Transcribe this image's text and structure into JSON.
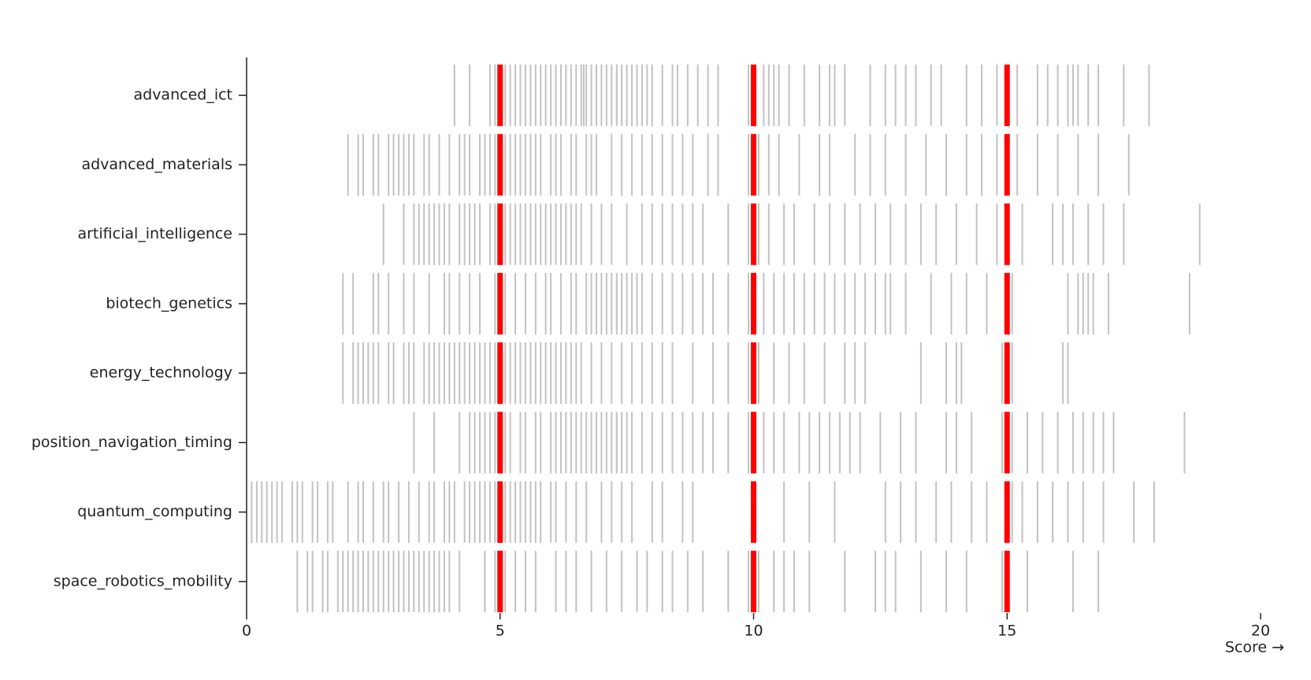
{
  "chart_data": {
    "type": "strip",
    "xlabel": "Score →",
    "xlim": [
      0,
      20
    ],
    "xticks": [
      0,
      5,
      10,
      15,
      20
    ],
    "color": "#777",
    "rule_color": "#ff0000",
    "rules": [
      5,
      10,
      15
    ],
    "categories": [
      "advanced_ict",
      "advanced_materials",
      "artificial_intelligence",
      "biotech_genetics",
      "energy_technology",
      "position_navigation_timing",
      "quantum_computing",
      "space_robotics_mobility"
    ],
    "values": [
      [
        4.1,
        4.4,
        4.8,
        4.9,
        5.1,
        5.2,
        5.3,
        5.4,
        5.5,
        5.6,
        5.7,
        5.8,
        5.9,
        6.0,
        6.1,
        6.2,
        6.3,
        6.4,
        6.5,
        6.6,
        6.65,
        6.7,
        6.8,
        6.9,
        7.0,
        7.1,
        7.2,
        7.3,
        7.4,
        7.5,
        7.6,
        7.7,
        7.8,
        7.9,
        8.0,
        8.2,
        8.4,
        8.5,
        8.7,
        8.9,
        9.1,
        9.3,
        9.9,
        10.0,
        10.2,
        10.3,
        10.4,
        10.5,
        10.7,
        11.0,
        11.3,
        11.5,
        11.6,
        11.8,
        12.3,
        12.6,
        12.8,
        13.0,
        13.2,
        13.5,
        13.7,
        14.2,
        14.5,
        14.8,
        15.0,
        15.2,
        15.6,
        15.8,
        16.0,
        16.2,
        16.3,
        16.4,
        16.6,
        16.8,
        17.3,
        17.8
      ],
      [
        2.0,
        2.2,
        2.3,
        2.5,
        2.6,
        2.8,
        2.9,
        3.0,
        3.1,
        3.2,
        3.3,
        3.5,
        3.6,
        3.8,
        4.0,
        4.2,
        4.3,
        4.4,
        4.6,
        4.7,
        4.8,
        4.9,
        5.1,
        5.2,
        5.3,
        5.4,
        5.5,
        5.6,
        5.7,
        5.8,
        6.0,
        6.1,
        6.2,
        6.4,
        6.5,
        6.7,
        6.8,
        6.9,
        7.2,
        7.4,
        7.6,
        7.8,
        8.0,
        8.2,
        8.4,
        8.6,
        8.8,
        9.1,
        9.3,
        9.9,
        10.1,
        10.3,
        10.5,
        10.9,
        11.3,
        11.5,
        12.0,
        12.3,
        12.6,
        13.0,
        13.4,
        13.8,
        14.2,
        14.5,
        14.8,
        15.0,
        15.2,
        15.6,
        16.0,
        16.4,
        16.8,
        17.4
      ],
      [
        2.7,
        3.1,
        3.3,
        3.4,
        3.5,
        3.6,
        3.7,
        3.8,
        3.9,
        4.0,
        4.2,
        4.3,
        4.4,
        4.5,
        4.6,
        4.8,
        4.9,
        5.0,
        5.1,
        5.2,
        5.3,
        5.4,
        5.5,
        5.6,
        5.7,
        5.8,
        5.9,
        6.0,
        6.1,
        6.2,
        6.3,
        6.4,
        6.5,
        6.6,
        6.8,
        7.0,
        7.2,
        7.5,
        7.8,
        8.0,
        8.2,
        8.4,
        8.6,
        8.8,
        9.0,
        9.5,
        9.9,
        10.1,
        10.3,
        10.6,
        10.8,
        11.2,
        11.5,
        11.8,
        12.1,
        12.4,
        12.7,
        13.0,
        13.3,
        13.6,
        14.0,
        14.4,
        14.8,
        15.0,
        15.3,
        15.9,
        16.1,
        16.3,
        16.6,
        16.9,
        17.3,
        18.8
      ],
      [
        1.9,
        2.1,
        2.5,
        2.6,
        2.8,
        3.1,
        3.3,
        3.6,
        3.9,
        4.0,
        4.2,
        4.4,
        4.6,
        4.9,
        5.0,
        5.1,
        5.3,
        5.5,
        5.7,
        5.9,
        6.0,
        6.2,
        6.4,
        6.5,
        6.7,
        6.8,
        6.9,
        7.0,
        7.1,
        7.2,
        7.3,
        7.4,
        7.5,
        7.6,
        7.7,
        7.8,
        8.0,
        8.2,
        8.4,
        8.6,
        8.8,
        9.0,
        9.2,
        9.5,
        9.9,
        10.0,
        10.2,
        10.4,
        10.6,
        10.8,
        11.0,
        11.2,
        11.4,
        11.6,
        11.8,
        12.0,
        12.2,
        12.4,
        12.6,
        12.7,
        13.0,
        13.5,
        13.9,
        14.2,
        14.6,
        15.0,
        15.1,
        16.2,
        16.4,
        16.5,
        16.6,
        16.7,
        17.0,
        18.6
      ],
      [
        1.9,
        2.1,
        2.2,
        2.3,
        2.4,
        2.5,
        2.6,
        2.8,
        2.9,
        3.1,
        3.2,
        3.3,
        3.5,
        3.6,
        3.7,
        3.8,
        3.9,
        4.0,
        4.1,
        4.2,
        4.3,
        4.4,
        4.5,
        4.6,
        4.7,
        4.8,
        4.9,
        5.0,
        5.1,
        5.2,
        5.3,
        5.4,
        5.5,
        5.6,
        5.7,
        5.8,
        5.9,
        6.0,
        6.1,
        6.2,
        6.3,
        6.4,
        6.5,
        6.6,
        6.8,
        7.0,
        7.2,
        7.4,
        7.6,
        7.8,
        8.0,
        8.2,
        8.4,
        8.8,
        9.2,
        9.5,
        9.9,
        10.1,
        10.4,
        10.7,
        11.0,
        11.4,
        11.8,
        12.0,
        12.2,
        13.3,
        13.8,
        14.0,
        14.1,
        14.9,
        15.1,
        16.1,
        16.2
      ],
      [
        3.3,
        3.7,
        4.2,
        4.4,
        4.5,
        4.6,
        4.7,
        4.8,
        4.9,
        5.1,
        5.2,
        5.4,
        5.5,
        5.7,
        5.8,
        6.0,
        6.1,
        6.2,
        6.3,
        6.4,
        6.5,
        6.6,
        6.7,
        6.8,
        6.9,
        7.0,
        7.1,
        7.2,
        7.3,
        7.4,
        7.5,
        7.6,
        7.8,
        8.0,
        8.2,
        8.4,
        8.6,
        8.8,
        9.0,
        9.2,
        9.5,
        9.9,
        10.0,
        10.2,
        10.4,
        10.6,
        10.9,
        11.1,
        11.3,
        11.5,
        11.7,
        11.9,
        12.1,
        12.5,
        12.9,
        13.2,
        13.8,
        14.0,
        14.3,
        14.9,
        15.1,
        15.4,
        15.7,
        16.0,
        16.3,
        16.5,
        16.7,
        16.9,
        17.1,
        18.5
      ],
      [
        0.1,
        0.2,
        0.3,
        0.4,
        0.5,
        0.6,
        0.7,
        0.9,
        1.0,
        1.1,
        1.3,
        1.4,
        1.6,
        1.7,
        2.0,
        2.2,
        2.3,
        2.5,
        2.7,
        2.8,
        3.0,
        3.2,
        3.4,
        3.6,
        3.7,
        3.9,
        4.0,
        4.1,
        4.3,
        4.4,
        4.5,
        4.6,
        4.7,
        4.8,
        4.9,
        5.0,
        5.1,
        5.2,
        5.3,
        5.4,
        5.5,
        5.6,
        5.7,
        5.8,
        6.0,
        6.1,
        6.3,
        6.5,
        6.7,
        7.0,
        7.2,
        7.4,
        7.6,
        8.0,
        8.2,
        8.6,
        8.8,
        10.6,
        11.1,
        11.6,
        12.6,
        12.9,
        13.2,
        13.6,
        13.9,
        14.3,
        14.6,
        15.1,
        15.3,
        15.6,
        15.9,
        16.2,
        16.5,
        16.9,
        17.5,
        17.9
      ],
      [
        1.0,
        1.2,
        1.3,
        1.5,
        1.6,
        1.8,
        1.9,
        2.0,
        2.1,
        2.2,
        2.3,
        2.4,
        2.5,
        2.6,
        2.7,
        2.8,
        2.9,
        3.0,
        3.1,
        3.2,
        3.3,
        3.4,
        3.5,
        3.6,
        3.7,
        3.8,
        3.9,
        4.0,
        4.2,
        4.7,
        4.9,
        5.1,
        5.3,
        5.5,
        5.7,
        6.1,
        6.3,
        6.5,
        6.8,
        7.1,
        7.4,
        7.7,
        7.9,
        8.2,
        8.4,
        8.7,
        9.0,
        9.5,
        9.9,
        10.1,
        10.4,
        10.6,
        10.8,
        11.1,
        11.8,
        12.4,
        12.6,
        12.8,
        13.3,
        13.8,
        14.2,
        14.9,
        15.4,
        16.3,
        16.8
      ]
    ]
  }
}
